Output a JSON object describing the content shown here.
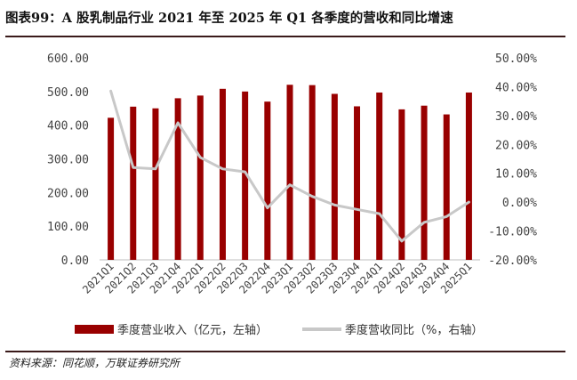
{
  "header": {
    "title": "图表99：A 股乳制品行业 2021 年至 2025 年 Q1 各季度的营收和同比增速"
  },
  "footer": {
    "source": "资料来源：同花顺，万联证券研究所"
  },
  "colors": {
    "bar": "#990000",
    "line": "#c8c8c8",
    "rule": "#3a1a1a"
  },
  "chart_data": {
    "type": "bar",
    "categories": [
      "2021Q1",
      "2021Q2",
      "2021Q3",
      "2021Q4",
      "2022Q1",
      "2022Q2",
      "2022Q3",
      "2022Q4",
      "2023Q1",
      "2023Q2",
      "2023Q3",
      "2023Q4",
      "2024Q1",
      "2024Q2",
      "2024Q3",
      "2024Q4",
      "2025Q1"
    ],
    "series": [
      {
        "name": "季度营业收入（亿元，左轴）",
        "type": "bar",
        "axis": "left",
        "values": [
          422,
          455,
          450,
          480,
          488,
          508,
          500,
          470,
          520,
          519,
          493,
          456,
          497,
          447,
          458,
          432,
          497
        ]
      },
      {
        "name": "季度营收同比（%，右轴）",
        "type": "line",
        "axis": "right",
        "values": [
          38.5,
          12.0,
          11.5,
          27.5,
          15.5,
          11.5,
          10.5,
          -2.0,
          6.0,
          2.0,
          -1.0,
          -2.5,
          -4.0,
          -13.5,
          -7.0,
          -5.0,
          0.0
        ]
      }
    ],
    "y_left": {
      "ylim": [
        0,
        600
      ],
      "ticks": [
        "0.00",
        "100.00",
        "200.00",
        "300.00",
        "400.00",
        "500.00",
        "600.00"
      ]
    },
    "y_right": {
      "ylim": [
        -20,
        50
      ],
      "ticks": [
        "-20.00%",
        "-10.00%",
        "0.00%",
        "10.00%",
        "20.00%",
        "30.00%",
        "40.00%",
        "50.00%"
      ]
    },
    "legend_position": "bottom",
    "grid": false
  }
}
